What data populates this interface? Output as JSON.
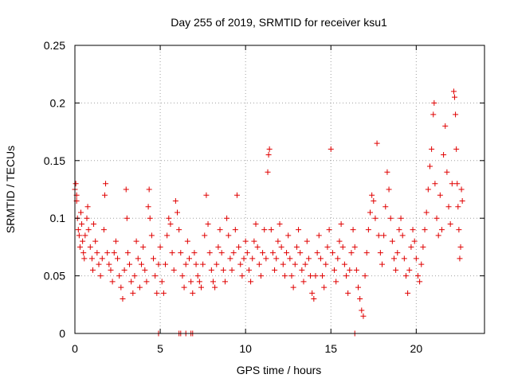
{
  "chart_data": {
    "type": "scatter",
    "title": "Day 255 of 2019, SRMTID for receiver ksu1",
    "xlabel": "GPS time / hours",
    "ylabel": "SRMTID / TECUs",
    "xlim": [
      0,
      24
    ],
    "ylim": [
      0,
      0.25
    ],
    "xticks": [
      0,
      5,
      10,
      15,
      20
    ],
    "xtick_labels": [
      "0",
      "5",
      "10",
      "15",
      "20"
    ],
    "yticks": [
      0,
      0.05,
      0.1,
      0.15,
      0.2,
      0.25
    ],
    "ytick_labels": [
      "0",
      "0.05",
      "0.1",
      "0.15",
      "0.2",
      "0.25"
    ],
    "grid": true,
    "marker": "plus",
    "series": [
      {
        "name": "SRMTID",
        "color": "#e00000",
        "points": [
          [
            0.0,
            0.125
          ],
          [
            0.05,
            0.13
          ],
          [
            0.1,
            0.12
          ],
          [
            0.1,
            0.115
          ],
          [
            0.15,
            0.1
          ],
          [
            0.2,
            0.09
          ],
          [
            0.25,
            0.085
          ],
          [
            0.3,
            0.075
          ],
          [
            0.35,
            0.105
          ],
          [
            0.4,
            0.095
          ],
          [
            0.45,
            0.08
          ],
          [
            0.5,
            0.07
          ],
          [
            0.55,
            0.065
          ],
          [
            0.6,
            0.085
          ],
          [
            0.7,
            0.1
          ],
          [
            0.75,
            0.11
          ],
          [
            0.8,
            0.09
          ],
          [
            0.9,
            0.075
          ],
          [
            1.0,
            0.065
          ],
          [
            1.05,
            0.055
          ],
          [
            1.1,
            0.095
          ],
          [
            1.2,
            0.08
          ],
          [
            1.3,
            0.07
          ],
          [
            1.4,
            0.06
          ],
          [
            1.5,
            0.05
          ],
          [
            1.6,
            0.065
          ],
          [
            1.7,
            0.09
          ],
          [
            1.75,
            0.12
          ],
          [
            1.8,
            0.13
          ],
          [
            1.9,
            0.07
          ],
          [
            2.0,
            0.06
          ],
          [
            2.1,
            0.055
          ],
          [
            2.2,
            0.045
          ],
          [
            2.3,
            0.07
          ],
          [
            2.4,
            0.08
          ],
          [
            2.5,
            0.065
          ],
          [
            2.6,
            0.05
          ],
          [
            2.7,
            0.04
          ],
          [
            2.8,
            0.03
          ],
          [
            2.9,
            0.055
          ],
          [
            3.0,
            0.125
          ],
          [
            3.05,
            0.1
          ],
          [
            3.1,
            0.07
          ],
          [
            3.2,
            0.06
          ],
          [
            3.3,
            0.045
          ],
          [
            3.4,
            0.035
          ],
          [
            3.5,
            0.05
          ],
          [
            3.6,
            0.08
          ],
          [
            3.7,
            0.065
          ],
          [
            3.8,
            0.04
          ],
          [
            3.9,
            0.06
          ],
          [
            4.0,
            0.075
          ],
          [
            4.1,
            0.055
          ],
          [
            4.2,
            0.045
          ],
          [
            4.3,
            0.11
          ],
          [
            4.35,
            0.125
          ],
          [
            4.4,
            0.1
          ],
          [
            4.5,
            0.085
          ],
          [
            4.6,
            0.065
          ],
          [
            4.7,
            0.05
          ],
          [
            4.8,
            0.035
          ],
          [
            4.9,
            0.06
          ],
          [
            5.0,
            0.075
          ],
          [
            5.1,
            0.045
          ],
          [
            5.2,
            0.035
          ],
          [
            5.3,
            0.06
          ],
          [
            5.4,
            0.085
          ],
          [
            5.5,
            0.1
          ],
          [
            5.6,
            0.095
          ],
          [
            5.7,
            0.07
          ],
          [
            5.8,
            0.055
          ],
          [
            5.9,
            0.115
          ],
          [
            6.0,
            0.105
          ],
          [
            6.1,
            0.09
          ],
          [
            6.2,
            0.07
          ],
          [
            6.3,
            0.05
          ],
          [
            6.4,
            0.04
          ],
          [
            6.5,
            0.06
          ],
          [
            6.6,
            0.08
          ],
          [
            6.7,
            0.065
          ],
          [
            6.8,
            0.045
          ],
          [
            6.9,
            0.035
          ],
          [
            7.0,
            0.07
          ],
          [
            7.1,
            0.06
          ],
          [
            7.2,
            0.05
          ],
          [
            7.3,
            0.045
          ],
          [
            7.4,
            0.04
          ],
          [
            7.5,
            0.06
          ],
          [
            7.6,
            0.085
          ],
          [
            7.7,
            0.12
          ],
          [
            7.8,
            0.095
          ],
          [
            7.9,
            0.07
          ],
          [
            8.0,
            0.055
          ],
          [
            8.1,
            0.045
          ],
          [
            8.2,
            0.04
          ],
          [
            8.3,
            0.06
          ],
          [
            8.4,
            0.075
          ],
          [
            8.5,
            0.09
          ],
          [
            8.6,
            0.07
          ],
          [
            8.7,
            0.055
          ],
          [
            8.8,
            0.045
          ],
          [
            8.9,
            0.1
          ],
          [
            9.0,
            0.085
          ],
          [
            9.1,
            0.065
          ],
          [
            9.2,
            0.055
          ],
          [
            9.3,
            0.07
          ],
          [
            9.4,
            0.09
          ],
          [
            9.5,
            0.12
          ],
          [
            9.6,
            0.075
          ],
          [
            9.7,
            0.06
          ],
          [
            9.8,
            0.05
          ],
          [
            9.9,
            0.065
          ],
          [
            10.0,
            0.08
          ],
          [
            10.1,
            0.07
          ],
          [
            10.2,
            0.055
          ],
          [
            10.3,
            0.045
          ],
          [
            10.4,
            0.065
          ],
          [
            10.5,
            0.08
          ],
          [
            10.6,
            0.095
          ],
          [
            10.7,
            0.075
          ],
          [
            10.8,
            0.06
          ],
          [
            10.9,
            0.05
          ],
          [
            11.0,
            0.07
          ],
          [
            11.1,
            0.09
          ],
          [
            11.2,
            0.065
          ],
          [
            11.3,
            0.14
          ],
          [
            11.35,
            0.155
          ],
          [
            11.4,
            0.16
          ],
          [
            11.5,
            0.09
          ],
          [
            11.6,
            0.07
          ],
          [
            11.7,
            0.055
          ],
          [
            11.8,
            0.065
          ],
          [
            11.9,
            0.08
          ],
          [
            12.0,
            0.095
          ],
          [
            12.1,
            0.075
          ],
          [
            12.2,
            0.06
          ],
          [
            12.3,
            0.05
          ],
          [
            12.4,
            0.07
          ],
          [
            12.5,
            0.085
          ],
          [
            12.6,
            0.065
          ],
          [
            12.7,
            0.05
          ],
          [
            12.8,
            0.04
          ],
          [
            12.9,
            0.06
          ],
          [
            13.0,
            0.075
          ],
          [
            13.1,
            0.09
          ],
          [
            13.2,
            0.07
          ],
          [
            13.3,
            0.055
          ],
          [
            13.4,
            0.045
          ],
          [
            13.5,
            0.06
          ],
          [
            13.6,
            0.08
          ],
          [
            13.7,
            0.065
          ],
          [
            13.8,
            0.05
          ],
          [
            13.9,
            0.035
          ],
          [
            14.0,
            0.03
          ],
          [
            14.1,
            0.05
          ],
          [
            14.2,
            0.07
          ],
          [
            14.3,
            0.085
          ],
          [
            14.4,
            0.065
          ],
          [
            14.5,
            0.05
          ],
          [
            14.6,
            0.04
          ],
          [
            14.7,
            0.06
          ],
          [
            14.8,
            0.075
          ],
          [
            14.9,
            0.09
          ],
          [
            15.0,
            0.16
          ],
          [
            15.1,
            0.07
          ],
          [
            15.2,
            0.055
          ],
          [
            15.3,
            0.045
          ],
          [
            15.4,
            0.065
          ],
          [
            15.5,
            0.08
          ],
          [
            15.6,
            0.095
          ],
          [
            15.7,
            0.075
          ],
          [
            15.8,
            0.06
          ],
          [
            15.9,
            0.05
          ],
          [
            16.0,
            0.035
          ],
          [
            16.1,
            0.055
          ],
          [
            16.2,
            0.07
          ],
          [
            16.3,
            0.09
          ],
          [
            16.4,
            0.075
          ],
          [
            16.5,
            0.055
          ],
          [
            16.6,
            0.04
          ],
          [
            16.7,
            0.03
          ],
          [
            16.8,
            0.02
          ],
          [
            16.9,
            0.015
          ],
          [
            17.0,
            0.05
          ],
          [
            17.1,
            0.07
          ],
          [
            17.2,
            0.09
          ],
          [
            17.3,
            0.105
          ],
          [
            17.4,
            0.12
          ],
          [
            17.5,
            0.115
          ],
          [
            17.6,
            0.1
          ],
          [
            17.7,
            0.165
          ],
          [
            17.8,
            0.085
          ],
          [
            17.9,
            0.07
          ],
          [
            18.0,
            0.06
          ],
          [
            18.1,
            0.085
          ],
          [
            18.2,
            0.11
          ],
          [
            18.3,
            0.14
          ],
          [
            18.4,
            0.125
          ],
          [
            18.5,
            0.1
          ],
          [
            18.6,
            0.08
          ],
          [
            18.7,
            0.065
          ],
          [
            18.8,
            0.055
          ],
          [
            18.9,
            0.07
          ],
          [
            19.0,
            0.09
          ],
          [
            19.1,
            0.1
          ],
          [
            19.2,
            0.085
          ],
          [
            19.3,
            0.065
          ],
          [
            19.4,
            0.05
          ],
          [
            19.5,
            0.035
          ],
          [
            19.6,
            0.055
          ],
          [
            19.7,
            0.075
          ],
          [
            19.8,
            0.09
          ],
          [
            19.9,
            0.08
          ],
          [
            20.0,
            0.065
          ],
          [
            20.1,
            0.05
          ],
          [
            20.2,
            0.045
          ],
          [
            20.3,
            0.06
          ],
          [
            20.4,
            0.075
          ],
          [
            20.5,
            0.09
          ],
          [
            20.6,
            0.105
          ],
          [
            20.7,
            0.125
          ],
          [
            20.8,
            0.145
          ],
          [
            20.9,
            0.16
          ],
          [
            21.0,
            0.19
          ],
          [
            21.05,
            0.2
          ],
          [
            21.1,
            0.13
          ],
          [
            21.2,
            0.1
          ],
          [
            21.3,
            0.085
          ],
          [
            21.4,
            0.12
          ],
          [
            21.5,
            0.09
          ],
          [
            21.6,
            0.155
          ],
          [
            21.7,
            0.18
          ],
          [
            21.8,
            0.14
          ],
          [
            21.9,
            0.11
          ],
          [
            22.0,
            0.095
          ],
          [
            22.1,
            0.13
          ],
          [
            22.2,
            0.21
          ],
          [
            22.25,
            0.205
          ],
          [
            22.3,
            0.19
          ],
          [
            22.35,
            0.16
          ],
          [
            22.4,
            0.13
          ],
          [
            22.45,
            0.11
          ],
          [
            22.5,
            0.09
          ],
          [
            22.55,
            0.065
          ],
          [
            22.6,
            0.075
          ],
          [
            22.65,
            0.125
          ],
          [
            22.7,
            0.115
          ],
          [
            4.9,
            0.0
          ],
          [
            6.1,
            0.0
          ],
          [
            6.2,
            0.0
          ],
          [
            6.5,
            0.0
          ],
          [
            6.8,
            0.0
          ],
          [
            6.9,
            0.0
          ],
          [
            16.4,
            0.0
          ]
        ]
      }
    ]
  }
}
